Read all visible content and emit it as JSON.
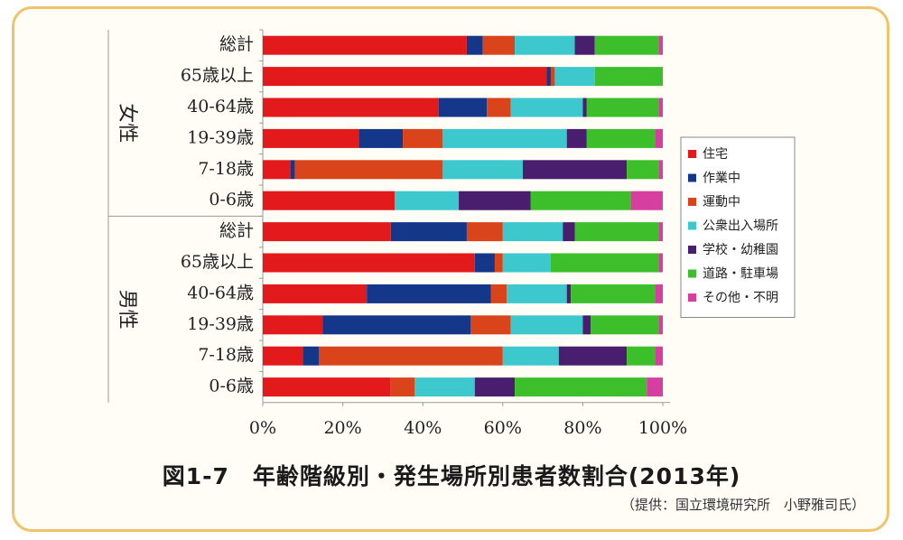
{
  "caption": "図1-7　年齢階級別・発生場所別患者数割合(2013年)",
  "credit": "（提供：国立環境研究所　小野雅司氏）",
  "chart_data": {
    "type": "bar",
    "orientation": "horizontal",
    "stacked": true,
    "groups": [
      {
        "label": "女性",
        "categories": [
          "総計",
          "65歳以上",
          "40-64歳",
          "19-39歳",
          "7-18歳",
          "0-6歳"
        ]
      },
      {
        "label": "男性",
        "categories": [
          "総計",
          "65歳以上",
          "40-64歳",
          "19-39歳",
          "7-18歳",
          "0-6歳"
        ]
      }
    ],
    "series": [
      {
        "name": "住宅",
        "color": "#e31a1c",
        "values": [
          51,
          71,
          44,
          24,
          7,
          33,
          32,
          53,
          26,
          15,
          10,
          32
        ]
      },
      {
        "name": "作業中",
        "color": "#14378a",
        "values": [
          4,
          1,
          12,
          11,
          1,
          0,
          19,
          5,
          31,
          37,
          4,
          0
        ]
      },
      {
        "name": "運動中",
        "color": "#d9441a",
        "values": [
          8,
          1,
          6,
          10,
          37,
          0,
          9,
          2,
          4,
          10,
          46,
          6
        ]
      },
      {
        "name": "公衆出入場所",
        "color": "#3cc8cc",
        "values": [
          15,
          10,
          18,
          31,
          20,
          16,
          15,
          12,
          15,
          18,
          14,
          15
        ]
      },
      {
        "name": "学校・幼稚園",
        "color": "#4a1e6e",
        "values": [
          5,
          0,
          1,
          5,
          26,
          18,
          3,
          0,
          1,
          2,
          17,
          10
        ]
      },
      {
        "name": "道路・駐車場",
        "color": "#3dbf2b",
        "values": [
          16,
          17,
          18,
          17,
          8,
          25,
          21,
          27,
          21,
          17,
          7,
          33
        ]
      },
      {
        "name": "その他・不明",
        "color": "#d63fa0",
        "values": [
          1,
          0,
          1,
          2,
          1,
          8,
          1,
          1,
          2,
          1,
          2,
          4
        ]
      }
    ],
    "x_ticks": [
      "0%",
      "20%",
      "40%",
      "60%",
      "80%",
      "100%"
    ],
    "xlim": [
      0,
      100
    ],
    "legend": "right"
  }
}
